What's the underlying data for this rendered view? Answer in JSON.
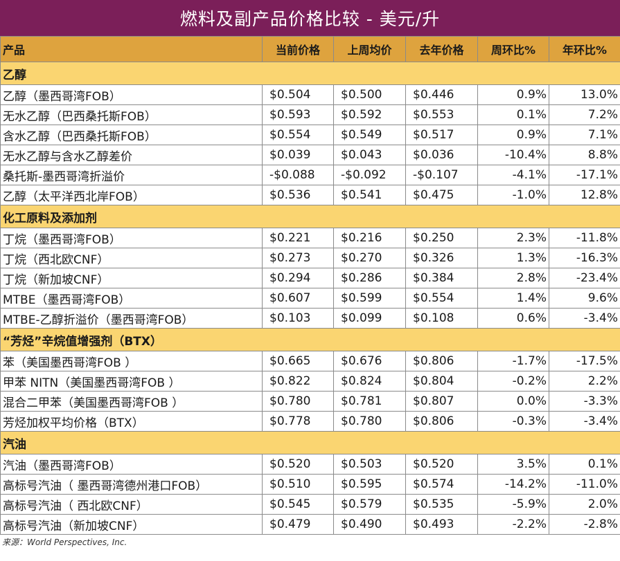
{
  "title": "燃料及副产品价格比较 - 美元/升",
  "headers": [
    "产品",
    "当前价格",
    "上周均价",
    "去年价格",
    "周环比%",
    "年环比%"
  ],
  "sections": [
    {
      "name": "乙醇",
      "rows": [
        [
          "乙醇（墨西哥湾FOB）",
          "$0.504",
          "$0.500",
          "$0.446",
          "0.9%",
          "13.0%"
        ],
        [
          "无水乙醇（巴西桑托斯FOB）",
          "$0.593",
          "$0.592",
          "$0.553",
          "0.1%",
          "7.2%"
        ],
        [
          "含水乙醇（巴西桑托斯FOB）",
          "$0.554",
          "$0.549",
          "$0.517",
          "0.9%",
          "7.1%"
        ],
        [
          "无水乙醇与含水乙醇差价",
          "$0.039",
          "$0.043",
          "$0.036",
          "-10.4%",
          "8.8%"
        ],
        [
          "桑托斯-墨西哥湾折溢价",
          "-$0.088",
          "-$0.092",
          "-$0.107",
          "-4.1%",
          "-17.1%"
        ],
        [
          "乙醇（太平洋西北岸FOB）",
          "$0.536",
          "$0.541",
          "$0.475",
          "-1.0%",
          "12.8%"
        ]
      ]
    },
    {
      "name": "化工原料及添加剂",
      "rows": [
        [
          "丁烷（墨西哥湾FOB）",
          "$0.221",
          "$0.216",
          "$0.250",
          "2.3%",
          "-11.8%"
        ],
        [
          "丁烷（西北欧CNF）",
          "$0.273",
          "$0.270",
          "$0.326",
          "1.3%",
          "-16.3%"
        ],
        [
          "丁烷（新加坡CNF）",
          "$0.294",
          "$0.286",
          "$0.384",
          "2.8%",
          "-23.4%"
        ],
        [
          "MTBE（墨西哥湾FOB）",
          "$0.607",
          "$0.599",
          "$0.554",
          "1.4%",
          "9.6%"
        ],
        [
          "MTBE-乙醇折溢价（墨西哥湾FOB）",
          "$0.103",
          "$0.099",
          "$0.108",
          "0.6%",
          "-3.4%"
        ]
      ]
    },
    {
      "name": "“芳烃”辛烷值增强剂（BTX）",
      "rows": [
        [
          "苯（美国墨西哥湾FOB ）",
          "$0.665",
          "$0.676",
          "$0.806",
          "-1.7%",
          "-17.5%"
        ],
        [
          "甲苯 NITN（美国墨西哥湾FOB ）",
          "$0.822",
          "$0.824",
          "$0.804",
          "-0.2%",
          "2.2%"
        ],
        [
          "混合二甲苯（美国墨西哥湾FOB ）",
          "$0.780",
          "$0.781",
          "$0.807",
          "0.0%",
          "-3.3%"
        ],
        [
          "芳烃加权平均价格（BTX）",
          "$0.778",
          "$0.780",
          "$0.806",
          "-0.3%",
          "-3.4%"
        ]
      ]
    },
    {
      "name": "汽油",
      "rows": [
        [
          "汽油（墨西哥湾FOB）",
          "$0.520",
          "$0.503",
          "$0.520",
          "3.5%",
          "0.1%"
        ],
        [
          "高标号汽油（ 墨西哥湾德州港口FOB）",
          "$0.510",
          "$0.595",
          "$0.574",
          "-14.2%",
          "-11.0%"
        ],
        [
          "高标号汽油（ 西北欧CNF）",
          "$0.545",
          "$0.579",
          "$0.535",
          "-5.9%",
          "2.0%"
        ],
        [
          "高标号汽油（新加坡CNF）",
          "$0.479",
          "$0.490",
          "$0.493",
          "-2.2%",
          "-2.8%"
        ]
      ]
    }
  ],
  "source": "来源：World Perspectives, Inc."
}
